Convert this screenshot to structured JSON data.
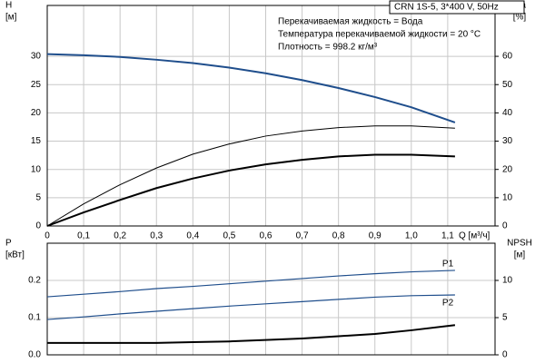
{
  "chart_data": [
    {
      "type": "line",
      "title": "CRN 1S-5, 3*400 V, 50Hz",
      "annotations": [
        "Перекачиваемая жидкость = Вода",
        "Температура перекачиваемой жидкости = 20 °C",
        "Плотность = 998.2 кг/м³"
      ],
      "xlabel": "Q [м³/ч]",
      "ylabel": [
        "H",
        "[м]"
      ],
      "y2label": [
        "eta",
        "[%]"
      ],
      "x": [
        0,
        0.1,
        0.2,
        0.3,
        0.4,
        0.5,
        0.6,
        0.7,
        0.8,
        0.9,
        1.0,
        1.12
      ],
      "series": [
        {
          "color": "#1f4e8c",
          "values": [
            30.4,
            30.2,
            29.9,
            29.4,
            28.8,
            28.0,
            27.0,
            25.8,
            24.4,
            22.8,
            21.0,
            18.3
          ]
        },
        {
          "color": "#000000",
          "axis": "y2",
          "values": [
            0,
            7.8,
            14.6,
            20.5,
            25.4,
            29.0,
            31.8,
            33.6,
            34.8,
            35.4,
            35.4,
            34.6
          ]
        },
        {
          "color": "#000000",
          "axis": "y2",
          "values": [
            0,
            4.8,
            9.2,
            13.4,
            16.8,
            19.6,
            21.8,
            23.4,
            24.6,
            25.2,
            25.2,
            24.6
          ]
        }
      ],
      "xlim": [
        0,
        1.23
      ],
      "xticks": [
        0,
        {
          "value": 0.1,
          "label": "0,1"
        },
        {
          "value": 0.2,
          "label": "0,2"
        },
        {
          "value": 0.3,
          "label": "0,3"
        },
        {
          "value": 0.4,
          "label": "0,4"
        },
        {
          "value": 0.5,
          "label": "0,5"
        },
        {
          "value": 0.6,
          "label": "0,6"
        },
        {
          "value": 0.7,
          "label": "0,7"
        },
        {
          "value": 0.8,
          "label": "0,8"
        },
        {
          "value": 0.9,
          "label": "0,9"
        },
        {
          "value": 1.0,
          "label": "1,0"
        },
        {
          "value": 1.1,
          "label": "1,1"
        }
      ],
      "ylim": [
        0,
        39
      ],
      "yticks": [
        0,
        5,
        10,
        15,
        20,
        25,
        30
      ],
      "y2lim": [
        0,
        78
      ],
      "y2ticks": [
        0,
        10,
        20,
        30,
        40,
        50,
        60
      ],
      "grid": true
    },
    {
      "type": "line",
      "ylabel": [
        "P",
        "[кВт]"
      ],
      "y2label": [
        "NPSH",
        "[м]"
      ],
      "x": [
        0,
        0.1,
        0.2,
        0.3,
        0.4,
        0.5,
        0.6,
        0.7,
        0.8,
        0.9,
        1.0,
        1.12
      ],
      "series": [
        {
          "name": "P1",
          "color": "#1f4e8c",
          "values": [
            0.156,
            0.163,
            0.17,
            0.178,
            0.184,
            0.191,
            0.198,
            0.205,
            0.212,
            0.218,
            0.223,
            0.227
          ]
        },
        {
          "name": "P2",
          "color": "#1f4e8c",
          "values": [
            0.095,
            0.102,
            0.11,
            0.117,
            0.124,
            0.131,
            0.137,
            0.143,
            0.149,
            0.155,
            0.159,
            0.161
          ]
        },
        {
          "color": "#000000",
          "axis": "y2",
          "values": [
            1.6,
            1.6,
            1.6,
            1.6,
            1.7,
            1.8,
            2.0,
            2.2,
            2.5,
            2.8,
            3.3,
            4.0
          ]
        }
      ],
      "xlim": [
        0,
        1.23
      ],
      "xticks": [
        0,
        0.1,
        0.2,
        0.3,
        0.4,
        0.5,
        0.6,
        0.7,
        0.8,
        0.9,
        1.0,
        1.1
      ],
      "ylim": [
        0,
        0.3
      ],
      "yticks": [
        {
          "value": 0,
          "label": "0.0"
        },
        0.1,
        0.2
      ],
      "y2lim": [
        0,
        15
      ],
      "y2ticks": [
        0,
        5,
        10
      ],
      "grid": true
    }
  ]
}
